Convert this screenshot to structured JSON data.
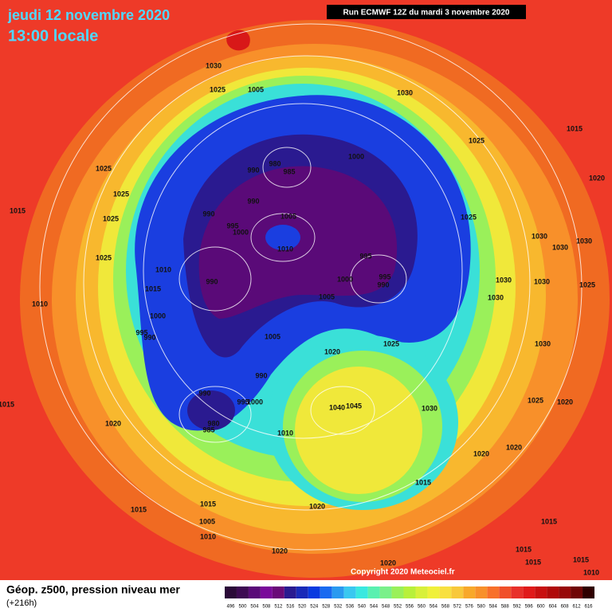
{
  "header": {
    "date": "jeudi 12 novembre 2020",
    "time": "13:00 locale",
    "run": "Run ECMWF 12Z du mardi 3 novembre 2020"
  },
  "footer": {
    "title": "Géop. z500, pression niveau mer",
    "lead": "(+216h)",
    "copyright": "Copyright 2020 Meteociel.fr"
  },
  "legend": {
    "levels": [
      496,
      500,
      504,
      508,
      512,
      516,
      520,
      524,
      528,
      532,
      536,
      540,
      544,
      548,
      552,
      556,
      560,
      564,
      568,
      572,
      576,
      580,
      584,
      588,
      592,
      596,
      600,
      604,
      608,
      612,
      616
    ],
    "colors": [
      "#2b0a38",
      "#3d0a52",
      "#5a0a78",
      "#7a0a9a",
      "#6a0a78",
      "#2a1a90",
      "#1a2ab8",
      "#0a3ae0",
      "#1a6af0",
      "#2a9af0",
      "#3ac8f0",
      "#3ae8e0",
      "#5af0b0",
      "#7af08a",
      "#9af05a",
      "#b8f03a",
      "#d8f03a",
      "#f0f03a",
      "#f8e040",
      "#f8c83a",
      "#f8a82a",
      "#f8902a",
      "#f8702a",
      "#f0502a",
      "#e8302a",
      "#e01a1a",
      "#c81010",
      "#b00a0a",
      "#980808",
      "#700606",
      "#300000"
    ]
  },
  "isobar_labels": [
    "1030",
    "1025",
    "1005",
    "1030",
    "1015",
    "1025",
    "1000",
    "980",
    "985",
    "990",
    "1025",
    "1025",
    "1020",
    "990",
    "1015",
    "1025",
    "990",
    "1005",
    "995",
    "1000",
    "1025",
    "1030",
    "1030",
    "1030",
    "1010",
    "1025",
    "1010",
    "995",
    "995",
    "990",
    "1000",
    "1030",
    "1030",
    "1025",
    "990",
    "1015",
    "1005",
    "1030",
    "1010",
    "1000",
    "995",
    "990",
    "1005",
    "1025",
    "1030",
    "1020",
    "990",
    "990",
    "995",
    "1000",
    "1040",
    "1045",
    "1030",
    "1025",
    "1020",
    "1015",
    "1020",
    "980",
    "985",
    "1010",
    "1020",
    "1020",
    "1015",
    "1015",
    "1015",
    "1020",
    "1005",
    "1015",
    "1010",
    "1015",
    "1020",
    "1020",
    "1015",
    "1015",
    "1010"
  ]
}
